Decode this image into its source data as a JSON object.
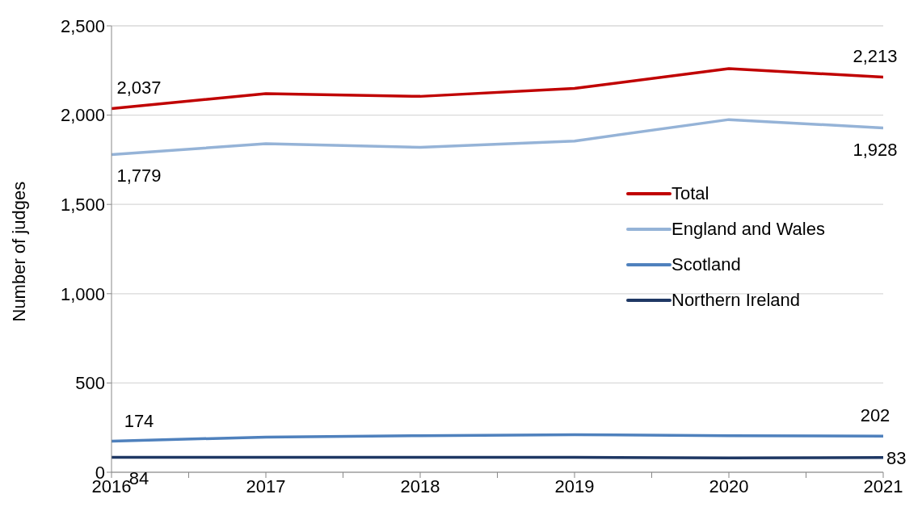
{
  "chart_data": {
    "type": "line",
    "ylabel": "Number of judges",
    "x": [
      2016,
      2017,
      2018,
      2019,
      2020,
      2021
    ],
    "xlim": [
      2016,
      2021
    ],
    "xticks": [
      2016,
      {
        "value": 2016.5,
        "label": null
      },
      2017,
      {
        "value": 2017.5,
        "label": null
      },
      2018,
      {
        "value": 2018.5,
        "label": null
      },
      2019,
      {
        "value": 2019.5,
        "label": null
      },
      2020,
      {
        "value": 2020.5,
        "label": null
      },
      2021
    ],
    "ylim": [
      0,
      2500
    ],
    "yticks": [
      0,
      500,
      {
        "value": 1000,
        "label": "1,000"
      },
      {
        "value": 1500,
        "label": "1,500"
      },
      {
        "value": 2000,
        "label": "2,000"
      },
      {
        "value": 2500,
        "label": "2,500"
      }
    ],
    "grid": "y",
    "legend": "right",
    "line_style": "solid",
    "series": [
      {
        "name": "Total",
        "color": "#c00000",
        "values": [
          2037,
          2120,
          2105,
          2150,
          2260,
          2213
        ],
        "value_labels": [
          "2,037",
          null,
          null,
          null,
          null,
          "2,213"
        ]
      },
      {
        "name": "England and Wales",
        "color": "#95b3d7",
        "values": [
          1779,
          1840,
          1820,
          1855,
          1975,
          1928
        ],
        "value_labels": [
          "1,779",
          null,
          null,
          null,
          null,
          "1,928"
        ]
      },
      {
        "name": "Scotland",
        "color": "#4f81bd",
        "values": [
          174,
          197,
          205,
          210,
          205,
          202
        ],
        "value_labels": [
          "174",
          null,
          null,
          null,
          null,
          "202"
        ]
      },
      {
        "name": "Northern Ireland",
        "color": "#1f3864",
        "values": [
          84,
          84,
          84,
          84,
          80,
          83
        ],
        "value_labels": [
          "84",
          null,
          null,
          null,
          null,
          "83"
        ]
      }
    ]
  }
}
